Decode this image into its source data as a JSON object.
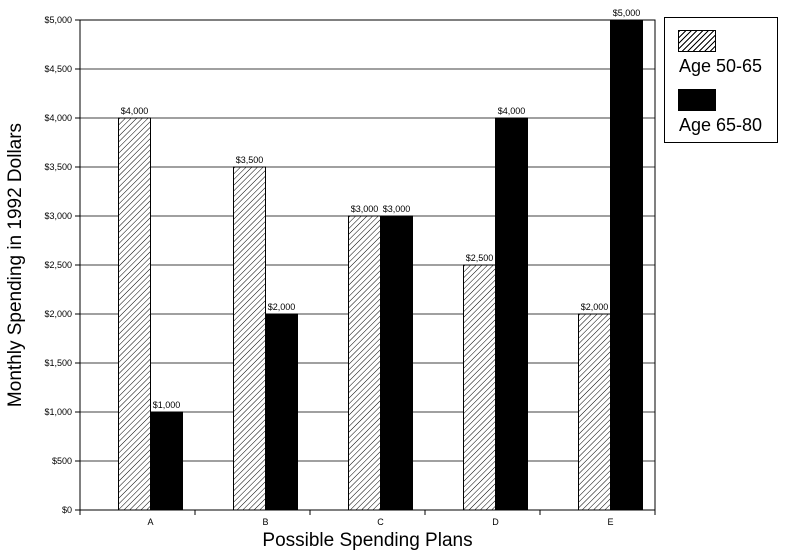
{
  "chart_data": {
    "type": "bar",
    "categories": [
      "A",
      "B",
      "C",
      "D",
      "E"
    ],
    "series": [
      {
        "name": "Age 50-65",
        "values": [
          4000,
          3500,
          3000,
          2500,
          2000
        ],
        "labels": [
          "$4,000",
          "$3,500",
          "$3,000",
          "$2,500",
          "$2,000"
        ],
        "pattern": "hatched"
      },
      {
        "name": "Age 65-80",
        "values": [
          1000,
          2000,
          3000,
          4000,
          5000
        ],
        "labels": [
          "$1,000",
          "$2,000",
          "$3,000",
          "$4,000",
          "$5,000"
        ],
        "pattern": "solid"
      }
    ],
    "xlabel": "Possible Spending Plans",
    "ylabel": "Monthly Spending in 1992 Dollars",
    "ylim": [
      0,
      5000
    ],
    "yticks": [
      0,
      500,
      1000,
      1500,
      2000,
      2500,
      3000,
      3500,
      4000,
      4500,
      5000
    ],
    "ytick_labels": [
      "$0",
      "$500",
      "$1,000",
      "$1,500",
      "$2,000",
      "$2,500",
      "$3,000",
      "$3,500",
      "$4,000",
      "$4,500",
      "$5,000"
    ],
    "grid": true,
    "legend_position": "top-right",
    "colors": {
      "solid": "#000000",
      "hatch": "#000000",
      "background": "#ffffff"
    }
  }
}
